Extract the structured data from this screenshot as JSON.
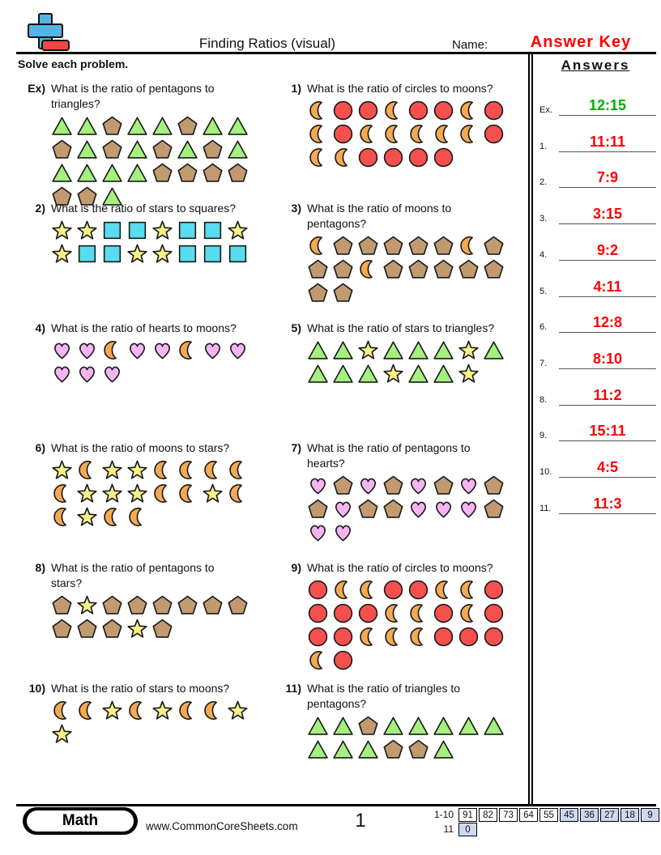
{
  "header": {
    "title": "Finding Ratios (visual)",
    "name_label": "Name:",
    "name_value": "Answer Key",
    "name_value_color": "#ff0000",
    "instructions": "Solve each problem."
  },
  "answers": {
    "title": "Answers",
    "items": [
      {
        "label": "Ex.",
        "value": "12:15",
        "color": "#00ad00"
      },
      {
        "label": "1.",
        "value": "11:11",
        "color": "#ff0000"
      },
      {
        "label": "2.",
        "value": "7:9",
        "color": "#ff0000"
      },
      {
        "label": "3.",
        "value": "3:15",
        "color": "#ff0000"
      },
      {
        "label": "4.",
        "value": "9:2",
        "color": "#ff0000"
      },
      {
        "label": "5.",
        "value": "4:11",
        "color": "#ff0000"
      },
      {
        "label": "6.",
        "value": "12:8",
        "color": "#ff0000"
      },
      {
        "label": "7.",
        "value": "8:10",
        "color": "#ff0000"
      },
      {
        "label": "8.",
        "value": "11:2",
        "color": "#ff0000"
      },
      {
        "label": "9.",
        "value": "15:11",
        "color": "#ff0000"
      },
      {
        "label": "10.",
        "value": "4:5",
        "color": "#ff0000"
      },
      {
        "label": "11.",
        "value": "11:3",
        "color": "#ff0000"
      }
    ]
  },
  "shape_colors": {
    "triangle": "#a5f07e",
    "pentagon": "#c19a70",
    "circle": "#f6504e",
    "moon": "#f4a952",
    "star": "#f6f189",
    "square": "#58dcef",
    "heart": "#f5b5f2"
  },
  "problems": [
    {
      "label": "Ex)",
      "col": 0,
      "row": 0,
      "question": "What is the ratio of pentagons to\ntriangles?",
      "shapes": [
        "triangle",
        "triangle",
        "pentagon",
        "triangle",
        "triangle",
        "pentagon",
        "triangle",
        "triangle",
        "pentagon",
        "triangle",
        "pentagon",
        "triangle",
        "pentagon",
        "triangle",
        "pentagon",
        "triangle",
        "triangle",
        "triangle",
        "triangle",
        "triangle",
        "pentagon",
        "pentagon",
        "pentagon",
        "pentagon",
        "pentagon",
        "pentagon",
        "triangle"
      ]
    },
    {
      "label": "1)",
      "col": 1,
      "row": 0,
      "question": "What is the ratio of circles to moons?",
      "shapes": [
        "moon",
        "circle",
        "circle",
        "moon",
        "circle",
        "circle",
        "moon",
        "circle",
        "moon",
        "circle",
        "moon",
        "moon",
        "moon",
        "moon",
        "moon",
        "circle",
        "moon",
        "moon",
        "circle",
        "circle",
        "circle",
        "circle"
      ]
    },
    {
      "label": "2)",
      "col": 0,
      "row": 1,
      "question": "What is the ratio of stars to squares?",
      "shapes": [
        "star",
        "star",
        "square",
        "square",
        "star",
        "square",
        "square",
        "star",
        "star",
        "square",
        "square",
        "star",
        "star",
        "square",
        "square",
        "square"
      ]
    },
    {
      "label": "3)",
      "col": 1,
      "row": 1,
      "question": "What is the ratio of moons to\npentagons?",
      "shapes": [
        "moon",
        "pentagon",
        "pentagon",
        "pentagon",
        "pentagon",
        "pentagon",
        "moon",
        "pentagon",
        "pentagon",
        "pentagon",
        "moon",
        "pentagon",
        "pentagon",
        "pentagon",
        "pentagon",
        "pentagon",
        "pentagon",
        "pentagon"
      ]
    },
    {
      "label": "4)",
      "col": 0,
      "row": 2,
      "question": "What is the ratio of hearts to moons?",
      "shapes": [
        "heart",
        "heart",
        "moon",
        "heart",
        "heart",
        "moon",
        "heart",
        "heart",
        "heart",
        "heart",
        "heart"
      ]
    },
    {
      "label": "5)",
      "col": 1,
      "row": 2,
      "question": "What is the ratio of stars to triangles?",
      "shapes": [
        "triangle",
        "triangle",
        "star",
        "triangle",
        "triangle",
        "triangle",
        "star",
        "triangle",
        "triangle",
        "triangle",
        "triangle",
        "star",
        "triangle",
        "triangle",
        "star"
      ]
    },
    {
      "label": "6)",
      "col": 0,
      "row": 3,
      "question": "What is the ratio of moons to stars?",
      "shapes": [
        "star",
        "moon",
        "star",
        "star",
        "moon",
        "moon",
        "moon",
        "moon",
        "moon",
        "star",
        "star",
        "star",
        "moon",
        "moon",
        "star",
        "moon",
        "moon",
        "star",
        "moon",
        "moon"
      ]
    },
    {
      "label": "7)",
      "col": 1,
      "row": 3,
      "question": "What is the ratio of pentagons to\nhearts?",
      "shapes": [
        "heart",
        "pentagon",
        "heart",
        "pentagon",
        "heart",
        "pentagon",
        "heart",
        "pentagon",
        "pentagon",
        "heart",
        "pentagon",
        "pentagon",
        "heart",
        "heart",
        "heart",
        "pentagon",
        "heart",
        "heart"
      ]
    },
    {
      "label": "8)",
      "col": 0,
      "row": 4,
      "question": "What is the ratio of pentagons to\nstars?",
      "shapes": [
        "pentagon",
        "star",
        "pentagon",
        "pentagon",
        "pentagon",
        "pentagon",
        "pentagon",
        "pentagon",
        "pentagon",
        "pentagon",
        "pentagon",
        "star",
        "pentagon"
      ]
    },
    {
      "label": "9)",
      "col": 1,
      "row": 4,
      "question": "What is the ratio of circles to moons?",
      "shapes": [
        "circle",
        "moon",
        "moon",
        "circle",
        "circle",
        "moon",
        "moon",
        "circle",
        "circle",
        "circle",
        "circle",
        "moon",
        "moon",
        "circle",
        "moon",
        "circle",
        "circle",
        "circle",
        "moon",
        "moon",
        "moon",
        "circle",
        "circle",
        "circle",
        "moon",
        "circle"
      ]
    },
    {
      "label": "10)",
      "col": 0,
      "row": 5,
      "question": "What is the ratio of stars to moons?",
      "shapes": [
        "moon",
        "moon",
        "star",
        "moon",
        "star",
        "moon",
        "moon",
        "star",
        "star"
      ]
    },
    {
      "label": "11)",
      "col": 1,
      "row": 5,
      "question": "What is the ratio of triangles to\npentagons?",
      "shapes": [
        "triangle",
        "triangle",
        "pentagon",
        "triangle",
        "triangle",
        "triangle",
        "triangle",
        "triangle",
        "triangle",
        "triangle",
        "triangle",
        "pentagon",
        "pentagon",
        "triangle"
      ]
    }
  ],
  "footer": {
    "brand": "Math",
    "website": "www.CommonCoreSheets.com",
    "page": "1",
    "highlight_color": "#ccd9f0",
    "score_rows": [
      {
        "label": "1-10",
        "cells": [
          {
            "v": "91",
            "hl": false
          },
          {
            "v": "82",
            "hl": false
          },
          {
            "v": "73",
            "hl": false
          },
          {
            "v": "64",
            "hl": false
          },
          {
            "v": "55",
            "hl": false
          },
          {
            "v": "45",
            "hl": true
          },
          {
            "v": "36",
            "hl": true
          },
          {
            "v": "27",
            "hl": true
          },
          {
            "v": "18",
            "hl": true
          },
          {
            "v": "9",
            "hl": true
          }
        ]
      },
      {
        "label": "11",
        "cells": [
          {
            "v": "0",
            "hl": true
          }
        ]
      }
    ]
  }
}
